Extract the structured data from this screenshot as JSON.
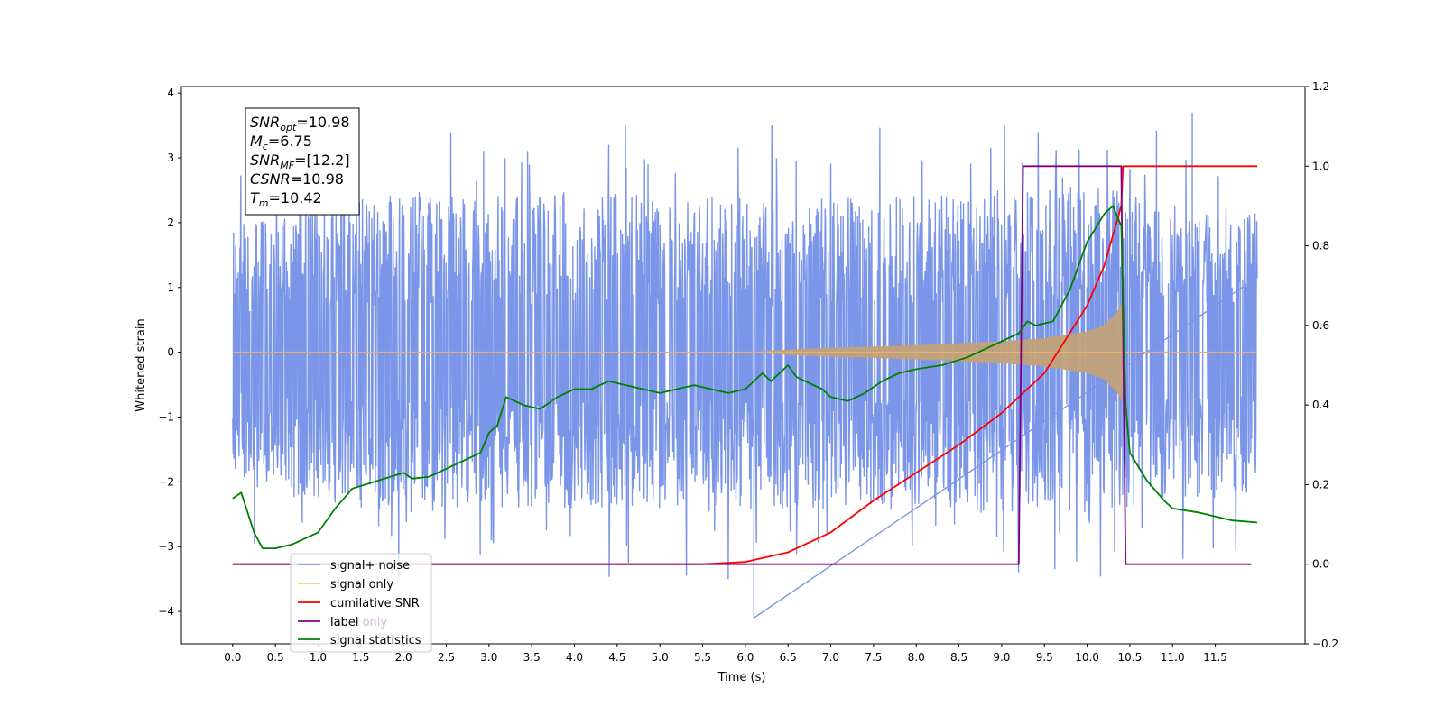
{
  "chart_data": {
    "type": "line",
    "xlabel": "Time (s)",
    "ylabel": "Whitened strain",
    "xlim": [
      -0.6,
      12.55
    ],
    "ylim": [
      -4.5,
      4.1
    ],
    "y2lim": [
      -0.2,
      1.2
    ],
    "x_ticks": [
      "0.0",
      "0.5",
      "1.0",
      "1.5",
      "2.0",
      "2.5",
      "3.0",
      "3.5",
      "4.0",
      "4.5",
      "5.0",
      "5.5",
      "6.0",
      "6.5",
      "7.0",
      "7.5",
      "8.0",
      "8.5",
      "9.0",
      "9.5",
      "10.0",
      "10.5",
      "11.0",
      "11.5"
    ],
    "y_ticks": [
      "4",
      "3",
      "2",
      "1",
      "0",
      "−1",
      "−2",
      "−3",
      "−4"
    ],
    "y2_ticks": [
      "1.2",
      "1.0",
      "0.8",
      "0.6",
      "0.4",
      "0.2",
      "0.0",
      "−0.2"
    ],
    "grid": false,
    "legend_position": "lower-left",
    "annotation": [
      {
        "name": "SNR",
        "sub": "opt",
        "value": "=10.98"
      },
      {
        "name": "M",
        "sub": "c",
        "value": "=6.75"
      },
      {
        "name": "SNR",
        "sub": "MF",
        "value": "=[12.2]"
      },
      {
        "name": "CSNR",
        "sub": "",
        "value": "=10.98"
      },
      {
        "name": "T",
        "sub": "m",
        "value": "=10.42"
      }
    ],
    "series": [
      {
        "name": "signal+ noise",
        "axis": "left",
        "color": "#7b96e8",
        "x_range": [
          0.0,
          11.99
        ],
        "description_envelope": {
          "x": [
            0.0,
            1.0,
            2.0,
            3.0,
            4.0,
            5.0,
            6.0,
            7.0,
            8.0,
            9.0,
            9.5,
            10.0,
            10.3,
            10.42,
            11.0,
            11.99
          ],
          "upper": [
            2.0,
            2.3,
            2.5,
            2.4,
            2.5,
            2.4,
            2.4,
            2.4,
            2.4,
            2.5,
            2.5,
            2.6,
            2.6,
            2.5,
            2.3,
            2.2
          ],
          "lower": [
            -2.0,
            -2.4,
            -2.5,
            -2.4,
            -2.4,
            -2.4,
            -2.5,
            -2.5,
            -2.4,
            -2.5,
            -2.4,
            -2.6,
            -2.4,
            -2.4,
            -2.3,
            -2.2
          ]
        },
        "max_value": 3.7,
        "min_value": -4.1
      },
      {
        "name": "signal only",
        "axis": "left",
        "color": "#ffa500",
        "envelope": {
          "x": [
            0.0,
            6.0,
            6.5,
            7.0,
            7.5,
            8.0,
            8.5,
            9.0,
            9.5,
            10.0,
            10.2,
            10.35,
            10.42,
            10.43,
            11.99
          ],
          "amplitude": [
            0.0,
            0.0,
            0.04,
            0.07,
            0.09,
            0.11,
            0.14,
            0.17,
            0.22,
            0.32,
            0.42,
            0.62,
            0.78,
            0.0,
            0.0
          ]
        }
      },
      {
        "name": "cumilative SNR",
        "axis": "right",
        "color": "#ff0000",
        "x": [
          0.0,
          5.5,
          6.0,
          6.5,
          7.0,
          7.5,
          8.0,
          8.5,
          9.0,
          9.5,
          10.0,
          10.2,
          10.4,
          10.42,
          11.99
        ],
        "values": [
          0.0,
          0.0,
          0.006,
          0.03,
          0.08,
          0.16,
          0.23,
          0.3,
          0.38,
          0.48,
          0.65,
          0.75,
          0.9,
          1.0,
          1.0
        ]
      },
      {
        "name": "label",
        "axis": "right",
        "color": "#800080",
        "x": [
          0.0,
          9.2,
          9.25,
          10.4,
          10.45,
          11.92
        ],
        "values": [
          0.0,
          0.0,
          1.0,
          1.0,
          0.0,
          0.0
        ]
      },
      {
        "name": "label only",
        "axis": "right",
        "color": "#c8a2c8",
        "hidden": true
      },
      {
        "name": "signal statistics",
        "axis": "right",
        "color": "#008000",
        "x": [
          0.0,
          0.1,
          0.25,
          0.35,
          0.5,
          0.7,
          1.0,
          1.2,
          1.4,
          1.7,
          2.0,
          2.1,
          2.3,
          2.6,
          2.9,
          3.0,
          3.1,
          3.2,
          3.4,
          3.6,
          3.8,
          4.0,
          4.2,
          4.4,
          4.6,
          4.8,
          5.0,
          5.2,
          5.4,
          5.6,
          5.8,
          6.0,
          6.2,
          6.3,
          6.5,
          6.6,
          6.7,
          6.9,
          7.0,
          7.2,
          7.4,
          7.6,
          7.8,
          8.0,
          8.3,
          8.6,
          8.8,
          9.0,
          9.2,
          9.3,
          9.4,
          9.6,
          9.8,
          10.0,
          10.2,
          10.3,
          10.4,
          10.45,
          10.5,
          10.7,
          10.9,
          11.0,
          11.3,
          11.5,
          11.7,
          11.99
        ],
        "values": [
          0.165,
          0.18,
          0.08,
          0.04,
          0.04,
          0.05,
          0.08,
          0.14,
          0.19,
          0.21,
          0.23,
          0.215,
          0.22,
          0.25,
          0.28,
          0.33,
          0.35,
          0.42,
          0.4,
          0.39,
          0.42,
          0.44,
          0.44,
          0.46,
          0.45,
          0.44,
          0.43,
          0.44,
          0.45,
          0.44,
          0.43,
          0.44,
          0.48,
          0.46,
          0.5,
          0.47,
          0.46,
          0.44,
          0.42,
          0.41,
          0.43,
          0.46,
          0.48,
          0.49,
          0.5,
          0.52,
          0.54,
          0.56,
          0.58,
          0.61,
          0.6,
          0.61,
          0.69,
          0.81,
          0.88,
          0.9,
          0.85,
          0.4,
          0.28,
          0.21,
          0.16,
          0.14,
          0.13,
          0.12,
          0.11,
          0.105
        ]
      }
    ]
  }
}
